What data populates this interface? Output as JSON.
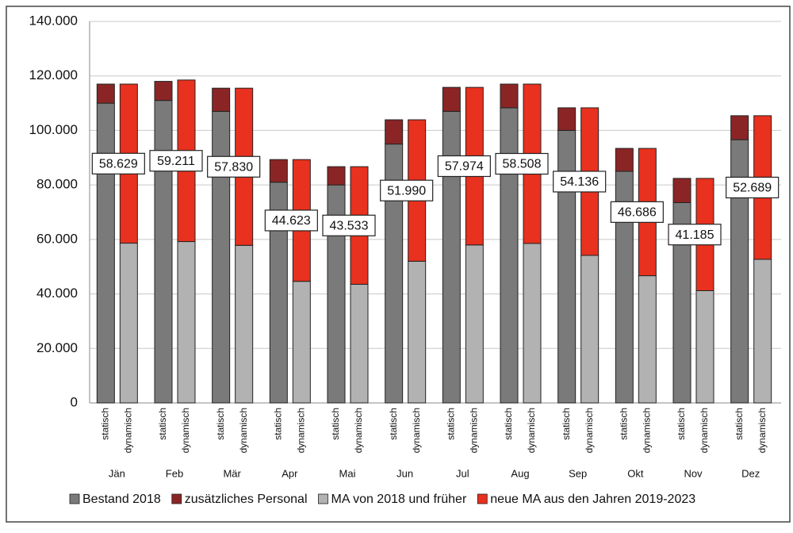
{
  "chart_data": {
    "type": "grouped-stacked-bar",
    "categories": [
      "Jän",
      "Feb",
      "Mär",
      "Apr",
      "Mai",
      "Jun",
      "Jul",
      "Aug",
      "Sep",
      "Okt",
      "Nov",
      "Dez"
    ],
    "stack_labels": [
      "statisch",
      "dynamisch"
    ],
    "series": [
      {
        "name": "Bestand 2018",
        "color": "#7a7a7a",
        "stack": 0,
        "values": [
          110000,
          111000,
          107000,
          81000,
          80000,
          95000,
          107000,
          108300,
          100000,
          85000,
          73500,
          96600
        ]
      },
      {
        "name": "zusätzliches Personal",
        "color": "#8b2525",
        "stack": 0,
        "values": [
          7000,
          7000,
          8500,
          8300,
          6700,
          8900,
          8800,
          8700,
          8300,
          8400,
          8900,
          8800
        ]
      },
      {
        "name": "MA von 2018 und früher",
        "color": "#b2b2b2",
        "stack": 1,
        "values": [
          58629,
          59211,
          57830,
          44623,
          43533,
          51990,
          57974,
          58508,
          54136,
          46686,
          41185,
          52689
        ],
        "value_labels": [
          "58.629",
          "59.211",
          "57.830",
          "44.623",
          "43.533",
          "51.990",
          "57.974",
          "58.508",
          "54.136",
          "46.686",
          "41.185",
          "52.689"
        ]
      },
      {
        "name": "neue MA aus den Jahren 2019-2023",
        "color": "#e8311e",
        "stack": 1,
        "values": [
          58371,
          59289,
          57670,
          44677,
          43167,
          51910,
          57826,
          58492,
          54164,
          46714,
          41215,
          52711
        ]
      }
    ],
    "ylim": [
      0,
      140000
    ],
    "yticks": [
      0,
      {
        "value": 20000,
        "label": "20.000"
      },
      {
        "value": 40000,
        "label": "40.000"
      },
      {
        "value": 60000,
        "label": "60.000"
      },
      {
        "value": 80000,
        "label": "80.000"
      },
      {
        "value": 100000,
        "label": "100.000"
      },
      {
        "value": 120000,
        "label": "120.000"
      },
      {
        "value": 140000,
        "label": "140.000"
      }
    ],
    "grid": true
  }
}
